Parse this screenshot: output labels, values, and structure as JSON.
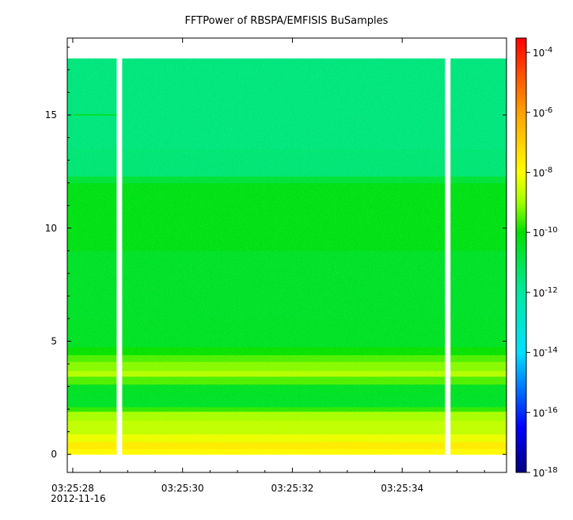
{
  "chart_data": {
    "type": "heatmap",
    "title": "FFTPower of RBSPA/EMFISIS  BuSamples",
    "xlabel": "",
    "ylabel": "",
    "x_range": [
      "03:25:27.9",
      "03:25:35.9"
    ],
    "x_ticks": [
      {
        "t": 0,
        "label": "03:25:28",
        "sublabel": "2012-11-16"
      },
      {
        "t": 2,
        "label": "03:25:30"
      },
      {
        "t": 4,
        "label": "03:25:32"
      },
      {
        "t": 6,
        "label": "03:25:34"
      }
    ],
    "x_minor_ticks": [
      0.5,
      1,
      1.5,
      2.5,
      3,
      3.5,
      4.5,
      5,
      5.5,
      6.5,
      7,
      7.5
    ],
    "ylim": [
      -0.8,
      18.4
    ],
    "y_ticks": [
      0,
      5,
      10,
      15
    ],
    "y_tick_labels": [
      "0",
      "5",
      "10",
      "15"
    ],
    "data_y_range": [
      0,
      17.5
    ],
    "data_gaps_s": [
      [
        0.8,
        0.9
      ],
      [
        6.78,
        6.88
      ]
    ],
    "power_profile": [
      {
        "y": 0.0,
        "log10_power": -8.5
      },
      {
        "y": 0.25,
        "log10_power": -7.3
      },
      {
        "y": 0.55,
        "log10_power": -7.9
      },
      {
        "y": 0.9,
        "log10_power": -8.5
      },
      {
        "y": 1.5,
        "log10_power": -8.8
      },
      {
        "y": 1.9,
        "log10_power": -9.0
      },
      {
        "y": 2.1,
        "log10_power": -10.4
      },
      {
        "y": 2.6,
        "log10_power": -10.6
      },
      {
        "y": 3.1,
        "log10_power": -10.3
      },
      {
        "y": 3.45,
        "log10_power": -8.7
      },
      {
        "y": 3.7,
        "log10_power": -8.9
      },
      {
        "y": 4.1,
        "log10_power": -9.4
      },
      {
        "y": 4.4,
        "log10_power": -9.6
      },
      {
        "y": 4.75,
        "log10_power": -10.3
      },
      {
        "y": 6.0,
        "log10_power": -10.6
      },
      {
        "y": 9.0,
        "log10_power": -10.4
      },
      {
        "y": 12.0,
        "log10_power": -10.1
      },
      {
        "y": 12.3,
        "log10_power": -11.3
      },
      {
        "y": 13.5,
        "log10_power": -11.6
      },
      {
        "y": 17.5,
        "log10_power": -11.5
      }
    ],
    "features": [
      {
        "note": "weak line near 15 Hz at start",
        "t_range": [
          0,
          0.8
        ],
        "y": 15,
        "log10_power": -10.2
      }
    ],
    "colorbar": {
      "scale": "log",
      "range": [
        1e-18,
        0.0003
      ],
      "tick_exponents": [
        -18,
        -16,
        -14,
        -12,
        -10,
        -8,
        -6,
        -4
      ],
      "tick_base": "10",
      "colors": {
        "min": "#000080",
        "blue": "#0000ff",
        "cyan": "#00e0ff",
        "teal": "#00e8a0",
        "green": "#00e000",
        "lime": "#a0ff00",
        "yellow": "#ffff00",
        "orange": "#ffa000",
        "max": "#ff0000"
      }
    },
    "grid": false,
    "legend": "none"
  }
}
